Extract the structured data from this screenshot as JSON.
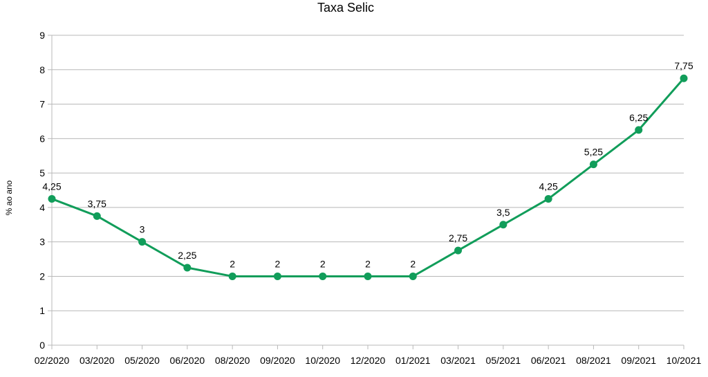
{
  "chart_data": {
    "type": "line",
    "title": "Taxa Selic",
    "xlabel": "",
    "ylabel": "% ao ano",
    "ylim": [
      0,
      9
    ],
    "yticks": [
      "0",
      "1",
      "2",
      "3",
      "4",
      "5",
      "6",
      "7",
      "8",
      "9"
    ],
    "grid": true,
    "legend": "none",
    "categories": [
      "02/2020",
      "03/2020",
      "05/2020",
      "06/2020",
      "08/2020",
      "09/2020",
      "10/2020",
      "12/2020",
      "01/2021",
      "03/2021",
      "05/2021",
      "06/2021",
      "08/2021",
      "09/2021",
      "10/2021"
    ],
    "series": [
      {
        "values": [
          4.25,
          3.75,
          3,
          2.25,
          2,
          2,
          2,
          2,
          2,
          2.75,
          3.5,
          4.25,
          5.25,
          6.25,
          7.75
        ],
        "data_labels": [
          "4,25",
          "3,75",
          "3",
          "2,25",
          "2",
          "2",
          "2",
          "2",
          "2",
          "2,75",
          "3,5",
          "4,25",
          "5,25",
          "6,25",
          "7,75"
        ],
        "color": "#119d5a"
      }
    ]
  }
}
